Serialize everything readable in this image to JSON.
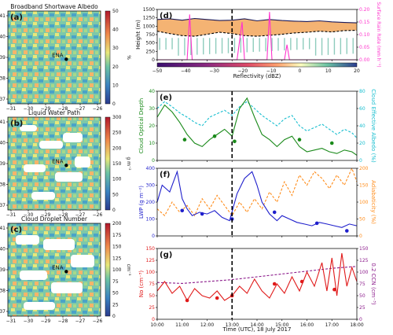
{
  "maps": {
    "x_ticks": [
      "−31",
      "−30",
      "−29",
      "−28",
      "−27",
      "−26"
    ],
    "y_ticks": [
      "41",
      "40",
      "39",
      "38",
      "37"
    ],
    "site_label": "ENA",
    "panels": [
      {
        "letter": "(a)",
        "title": "Broadband Shortwave Albedo",
        "cb_label": "%",
        "cb_ticks": [
          "50",
          "40",
          "30",
          "20",
          "10",
          "0"
        ],
        "cmap": "jet"
      },
      {
        "letter": "(b)",
        "title": "Liquid Water Path",
        "cb_label": "g m⁻²",
        "cb_ticks": [
          "300",
          "250",
          "200",
          "150",
          "100",
          "50",
          "0"
        ],
        "cmap": "jet"
      },
      {
        "letter": "(c)",
        "title": "Cloud Droplet Number",
        "cb_label": "cm⁻³",
        "cb_ticks": [
          "200",
          "175",
          "150",
          "125",
          "100",
          "75",
          "50",
          "25",
          "0"
        ],
        "cmap": "jet"
      }
    ]
  },
  "chart_data": {
    "type": "line",
    "x_ticks": [
      "10:00",
      "11:00",
      "12:00",
      "13:00",
      "14:00",
      "15:00",
      "16:00",
      "17:00",
      "18:00"
    ],
    "xlim": [
      10,
      18
    ],
    "xlabel": "Time (UTC), 18 July 2017",
    "event_time": 13.0,
    "d": {
      "letter": "(d)",
      "ylabel_left": "Height (m)",
      "ylabel_right": "Surface Rain Rate (mm h⁻¹)",
      "yticks_left": [
        "1500",
        "1250",
        "1000",
        "750",
        "500",
        "250",
        "0"
      ],
      "yticks_right": [
        "0.20",
        "0.15",
        "0.10",
        "0.05",
        "0.00"
      ],
      "ylim": [
        0,
        1500
      ],
      "rain_color": "#ff33cc",
      "colorbar_label": "Reflectivity (dBZ)",
      "colorbar_ticks": [
        "−50",
        "−40",
        "−30",
        "−20",
        "−10",
        "0",
        "10",
        "20"
      ],
      "cloud_top": [
        [
          10.0,
          1200
        ],
        [
          10.5,
          1220
        ],
        [
          11.0,
          1180
        ],
        [
          11.5,
          1230
        ],
        [
          12.0,
          1200
        ],
        [
          12.5,
          1170
        ],
        [
          13.0,
          1180
        ],
        [
          13.5,
          1220
        ],
        [
          14.0,
          1160
        ],
        [
          14.5,
          1200
        ],
        [
          15.0,
          1170
        ],
        [
          15.5,
          1150
        ],
        [
          16.0,
          1140
        ],
        [
          16.5,
          1160
        ],
        [
          17.0,
          1130
        ],
        [
          17.5,
          1110
        ],
        [
          18.0,
          1100
        ]
      ],
      "cloud_base": [
        [
          10.0,
          850
        ],
        [
          10.5,
          780
        ],
        [
          11.0,
          720
        ],
        [
          11.5,
          700
        ],
        [
          12.0,
          760
        ],
        [
          12.5,
          820
        ],
        [
          13.0,
          780
        ],
        [
          13.5,
          720
        ],
        [
          14.0,
          700
        ],
        [
          14.5,
          730
        ],
        [
          15.0,
          760
        ],
        [
          15.5,
          800
        ],
        [
          16.0,
          820
        ],
        [
          16.5,
          850
        ],
        [
          17.0,
          830
        ],
        [
          17.5,
          870
        ],
        [
          18.0,
          880
        ]
      ],
      "rain_rate": [
        [
          10.0,
          0
        ],
        [
          11.2,
          0
        ],
        [
          11.3,
          0.18
        ],
        [
          11.4,
          0
        ],
        [
          13.2,
          0
        ],
        [
          13.4,
          0.15
        ],
        [
          13.5,
          0
        ],
        [
          14.4,
          0
        ],
        [
          14.5,
          0.19
        ],
        [
          14.6,
          0
        ],
        [
          15.1,
          0
        ],
        [
          15.2,
          0.06
        ],
        [
          15.3,
          0
        ],
        [
          18.0,
          0
        ]
      ]
    },
    "e": {
      "letter": "(e)",
      "ylabel_left": "Cloud Optical Depth",
      "ylabel_right": "Cloud Effective Albedo (%)",
      "ylim_left": [
        0,
        40
      ],
      "ylim_right": [
        0,
        80
      ],
      "yticks_left": [
        "40",
        "30",
        "20",
        "10",
        "0"
      ],
      "yticks_right": [
        "80",
        "60",
        "40",
        "20",
        "0"
      ],
      "series": [
        {
          "name": "",
          "color": "#1a8a1a",
          "style": "solid",
          "values": [
            [
              10.0,
              25
            ],
            [
              10.3,
              32
            ],
            [
              10.6,
              28
            ],
            [
              10.9,
              22
            ],
            [
              11.2,
              15
            ],
            [
              11.5,
              10
            ],
            [
              11.8,
              8
            ],
            [
              12.1,
              12
            ],
            [
              12.4,
              15
            ],
            [
              12.7,
              18
            ],
            [
              13.0,
              14
            ],
            [
              13.3,
              30
            ],
            [
              13.6,
              36
            ],
            [
              13.9,
              25
            ],
            [
              14.2,
              15
            ],
            [
              14.5,
              12
            ],
            [
              14.8,
              8
            ],
            [
              15.1,
              12
            ],
            [
              15.4,
              14
            ],
            [
              15.7,
              8
            ],
            [
              16.0,
              5
            ],
            [
              16.3,
              6
            ],
            [
              16.6,
              7
            ],
            [
              16.9,
              5
            ],
            [
              17.2,
              4
            ],
            [
              17.5,
              6
            ],
            [
              17.8,
              5
            ],
            [
              18.0,
              3
            ]
          ]
        },
        {
          "name": "",
          "color": "#17becf",
          "style": "dashed",
          "values": [
            [
              10.0,
              60
            ],
            [
              10.3,
              68
            ],
            [
              10.6,
              62
            ],
            [
              10.9,
              55
            ],
            [
              11.2,
              50
            ],
            [
              11.5,
              44
            ],
            [
              11.8,
              40
            ],
            [
              12.1,
              50
            ],
            [
              12.4,
              54
            ],
            [
              12.7,
              58
            ],
            [
              13.0,
              52
            ],
            [
              13.3,
              62
            ],
            [
              13.6,
              68
            ],
            [
              13.9,
              60
            ],
            [
              14.2,
              52
            ],
            [
              14.5,
              46
            ],
            [
              14.8,
              40
            ],
            [
              15.1,
              48
            ],
            [
              15.4,
              52
            ],
            [
              15.7,
              40
            ],
            [
              16.0,
              34
            ],
            [
              16.3,
              38
            ],
            [
              16.6,
              42
            ],
            [
              16.9,
              36
            ],
            [
              17.2,
              30
            ],
            [
              17.5,
              36
            ],
            [
              17.8,
              32
            ],
            [
              18.0,
              26
            ]
          ]
        }
      ],
      "points": [
        [
          11.1,
          12
        ],
        [
          12.3,
          14
        ],
        [
          13.1,
          11
        ],
        [
          15.7,
          12
        ],
        [
          17.0,
          10
        ]
      ]
    },
    "f": {
      "letter": "(f)",
      "ylabel_left": "LWP (g m⁻²)",
      "ylabel_right": "Adiabaticity (%)",
      "ylim_left": [
        0,
        400
      ],
      "ylim_right": [
        0,
        200
      ],
      "yticks_left": [
        "400",
        "300",
        "200",
        "100",
        "0"
      ],
      "yticks_right": [
        "200",
        "150",
        "100",
        "50",
        "0"
      ],
      "series": [
        {
          "name": "",
          "color": "#1f1fcc",
          "style": "solid",
          "values": [
            [
              10.0,
              200
            ],
            [
              10.2,
              300
            ],
            [
              10.5,
              260
            ],
            [
              10.8,
              380
            ],
            [
              11.0,
              220
            ],
            [
              11.2,
              160
            ],
            [
              11.4,
              120
            ],
            [
              11.7,
              140
            ],
            [
              12.0,
              130
            ],
            [
              12.3,
              150
            ],
            [
              12.6,
              110
            ],
            [
              12.9,
              90
            ],
            [
              13.2,
              250
            ],
            [
              13.5,
              340
            ],
            [
              13.8,
              380
            ],
            [
              14.0,
              300
            ],
            [
              14.2,
              200
            ],
            [
              14.5,
              130
            ],
            [
              14.8,
              90
            ],
            [
              15.0,
              120
            ],
            [
              15.3,
              100
            ],
            [
              15.6,
              80
            ],
            [
              15.9,
              70
            ],
            [
              16.2,
              60
            ],
            [
              16.5,
              80
            ],
            [
              16.8,
              70
            ],
            [
              17.1,
              60
            ],
            [
              17.4,
              50
            ],
            [
              17.7,
              70
            ],
            [
              18.0,
              60
            ]
          ]
        },
        {
          "name": "",
          "color": "#ff8c1a",
          "style": "dashed",
          "values": [
            [
              10.0,
              80
            ],
            [
              10.3,
              60
            ],
            [
              10.6,
              100
            ],
            [
              10.9,
              70
            ],
            [
              11.2,
              90
            ],
            [
              11.5,
              60
            ],
            [
              11.8,
              110
            ],
            [
              12.1,
              80
            ],
            [
              12.4,
              120
            ],
            [
              12.7,
              90
            ],
            [
              13.0,
              60
            ],
            [
              13.3,
              100
            ],
            [
              13.6,
              70
            ],
            [
              13.9,
              110
            ],
            [
              14.2,
              80
            ],
            [
              14.5,
              130
            ],
            [
              14.8,
              100
            ],
            [
              15.1,
              160
            ],
            [
              15.4,
              120
            ],
            [
              15.7,
              180
            ],
            [
              16.0,
              150
            ],
            [
              16.3,
              190
            ],
            [
              16.6,
              170
            ],
            [
              16.9,
              140
            ],
            [
              17.2,
              180
            ],
            [
              17.5,
              150
            ],
            [
              17.8,
              200
            ],
            [
              18.0,
              160
            ]
          ]
        }
      ],
      "points": [
        [
          11.0,
          150
        ],
        [
          11.8,
          130
        ],
        [
          13.0,
          100
        ],
        [
          14.7,
          140
        ],
        [
          16.4,
          75
        ],
        [
          17.6,
          30
        ]
      ]
    },
    "g": {
      "letter": "(g)",
      "ylabel_left": "Nᴅ (cm⁻³)",
      "ylabel_right": "0.2 CCN (cm⁻³)",
      "ylim_left": [
        0,
        150
      ],
      "ylim_right": [
        0,
        150
      ],
      "yticks_left": [
        "150",
        "125",
        "100",
        "75",
        "50",
        "25",
        "0"
      ],
      "yticks_right": [
        "150",
        "125",
        "100",
        "75",
        "50",
        "25",
        "0"
      ],
      "series": [
        {
          "name": "",
          "color": "#e01a1a",
          "style": "solid",
          "values": [
            [
              10.0,
              60
            ],
            [
              10.3,
              80
            ],
            [
              10.6,
              55
            ],
            [
              10.9,
              70
            ],
            [
              11.2,
              40
            ],
            [
              11.5,
              65
            ],
            [
              11.8,
              50
            ],
            [
              12.1,
              45
            ],
            [
              12.4,
              60
            ],
            [
              12.7,
              40
            ],
            [
              13.0,
              50
            ],
            [
              13.3,
              70
            ],
            [
              13.6,
              55
            ],
            [
              13.9,
              85
            ],
            [
              14.2,
              60
            ],
            [
              14.5,
              45
            ],
            [
              14.8,
              75
            ],
            [
              15.1,
              55
            ],
            [
              15.4,
              90
            ],
            [
              15.7,
              60
            ],
            [
              16.0,
              100
            ],
            [
              16.3,
              70
            ],
            [
              16.6,
              120
            ],
            [
              16.8,
              60
            ],
            [
              17.0,
              130
            ],
            [
              17.2,
              50
            ],
            [
              17.4,
              140
            ],
            [
              17.6,
              70
            ],
            [
              17.8,
              110
            ],
            [
              18.0,
              80
            ]
          ]
        },
        {
          "name": "",
          "color": "#8b1a8b",
          "style": "dashed",
          "values": [
            [
              10.0,
              78
            ],
            [
              11.0,
              76
            ],
            [
              12.0,
              80
            ],
            [
              13.0,
              84
            ],
            [
              14.0,
              90
            ],
            [
              15.0,
              96
            ],
            [
              16.0,
              102
            ],
            [
              17.0,
              108
            ],
            [
              18.0,
              112
            ]
          ]
        }
      ],
      "points": [
        [
          11.2,
          40
        ],
        [
          12.4,
          45
        ],
        [
          13.0,
          50
        ],
        [
          14.7,
          75
        ],
        [
          15.8,
          80
        ],
        [
          17.1,
          63
        ]
      ]
    }
  }
}
